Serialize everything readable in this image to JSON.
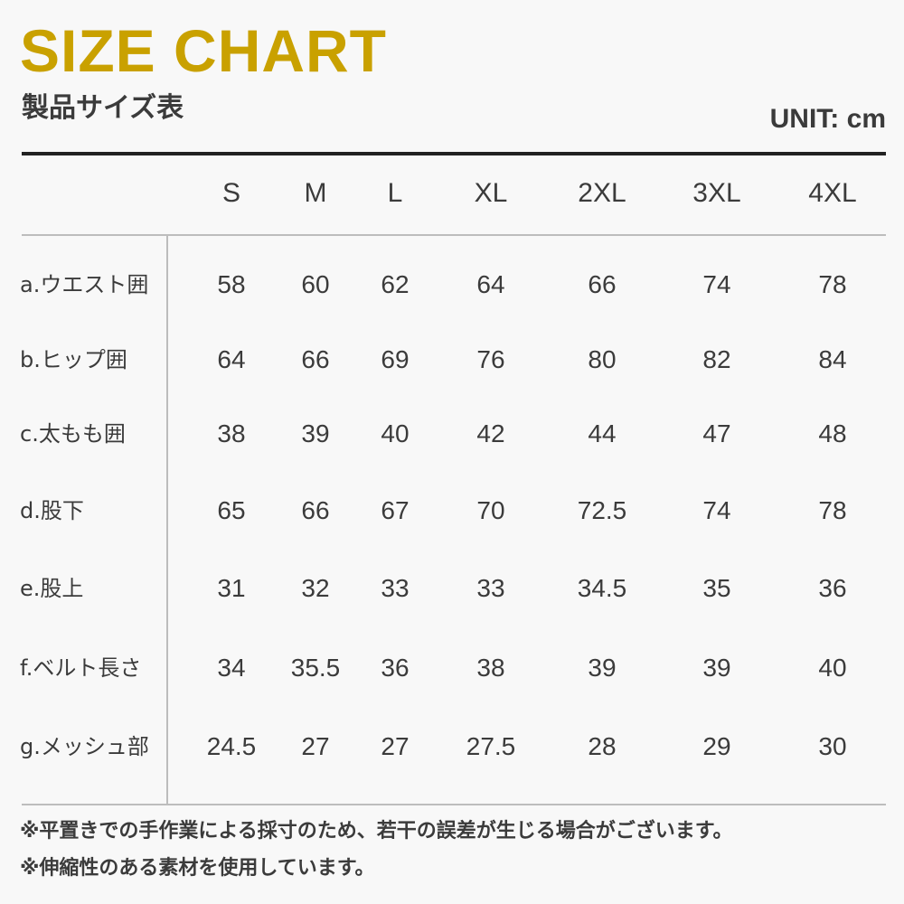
{
  "title": "SIZE CHART",
  "subtitle": "製品サイズ表",
  "unit": "UNIT: cm",
  "colors": {
    "title": "#c9a100",
    "text": "#3b3b3b",
    "background": "#f8f8f8"
  },
  "table": {
    "sizes": [
      "S",
      "M",
      "L",
      "XL",
      "2XL",
      "3XL",
      "4XL"
    ],
    "rows": [
      {
        "label": "a.ウエスト囲",
        "values": [
          "58",
          "60",
          "62",
          "64",
          "66",
          "74",
          "78"
        ]
      },
      {
        "label": "b.ヒップ囲",
        "values": [
          "64",
          "66",
          "69",
          "76",
          "80",
          "82",
          "84"
        ]
      },
      {
        "label": "c.太もも囲",
        "values": [
          "38",
          "39",
          "40",
          "42",
          "44",
          "47",
          "48"
        ]
      },
      {
        "label": "d.股下",
        "values": [
          "65",
          "66",
          "67",
          "70",
          "72.5",
          "74",
          "78"
        ]
      },
      {
        "label": "e.股上",
        "values": [
          "31",
          "32",
          "33",
          "33",
          "34.5",
          "35",
          "36"
        ]
      },
      {
        "label": "f.ベルト長さ",
        "values": [
          "34",
          "35.5",
          "36",
          "38",
          "39",
          "39",
          "40"
        ]
      },
      {
        "label": "g.メッシュ部",
        "values": [
          "24.5",
          "27",
          "27",
          "27.5",
          "28",
          "29",
          "30"
        ]
      }
    ]
  },
  "notes": [
    "※平置きでの手作業による採寸のため、若干の誤差が生じる場合がございます。",
    "※伸縮性のある素材を使用しています。"
  ]
}
